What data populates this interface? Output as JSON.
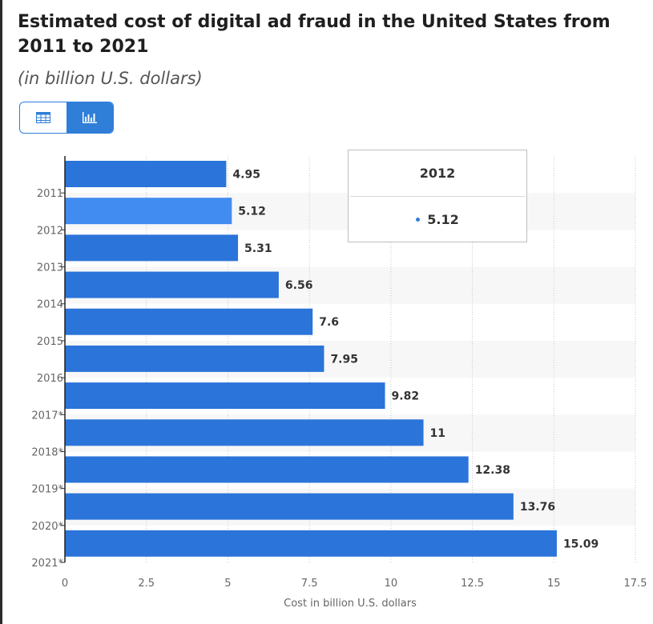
{
  "title": "Estimated cost of digital ad fraud in the United States from 2011 to 2021",
  "subtitle": "(in billion U.S. dollars)",
  "colors": {
    "bar": "#2b74d9",
    "bar_highlight": "#418cf0",
    "accent": "#2f7ed8",
    "band": "#f7f7f7"
  },
  "view_toggle": {
    "active": "chart",
    "icons": [
      "table-icon",
      "bar-chart-icon"
    ]
  },
  "tooltip": {
    "header": "2012",
    "value": "5.12"
  },
  "chart_data": {
    "type": "bar",
    "orientation": "horizontal",
    "categories": [
      "2011",
      "2012",
      "2013",
      "2014",
      "2015",
      "2016",
      "2017*",
      "2018*",
      "2019*",
      "2020*",
      "2021*"
    ],
    "values": [
      4.95,
      5.12,
      5.31,
      6.56,
      7.6,
      7.95,
      9.82,
      11,
      12.38,
      13.76,
      15.09
    ],
    "value_labels": [
      "4.95",
      "5.12",
      "5.31",
      "6.56",
      "7.6",
      "7.95",
      "9.82",
      "11",
      "12.38",
      "13.76",
      "15.09"
    ],
    "highlighted_index": 1,
    "xlabel": "Cost in billion U.S. dollars",
    "ylabel": "",
    "xlim": [
      0,
      17.5
    ],
    "xticks": [
      0,
      2.5,
      5,
      7.5,
      10,
      12.5,
      15,
      17.5
    ],
    "xtick_labels": [
      "0",
      "2.5",
      "5",
      "7.5",
      "10",
      "12.5",
      "15",
      "17.5"
    ],
    "grid": "vertical dotted"
  }
}
